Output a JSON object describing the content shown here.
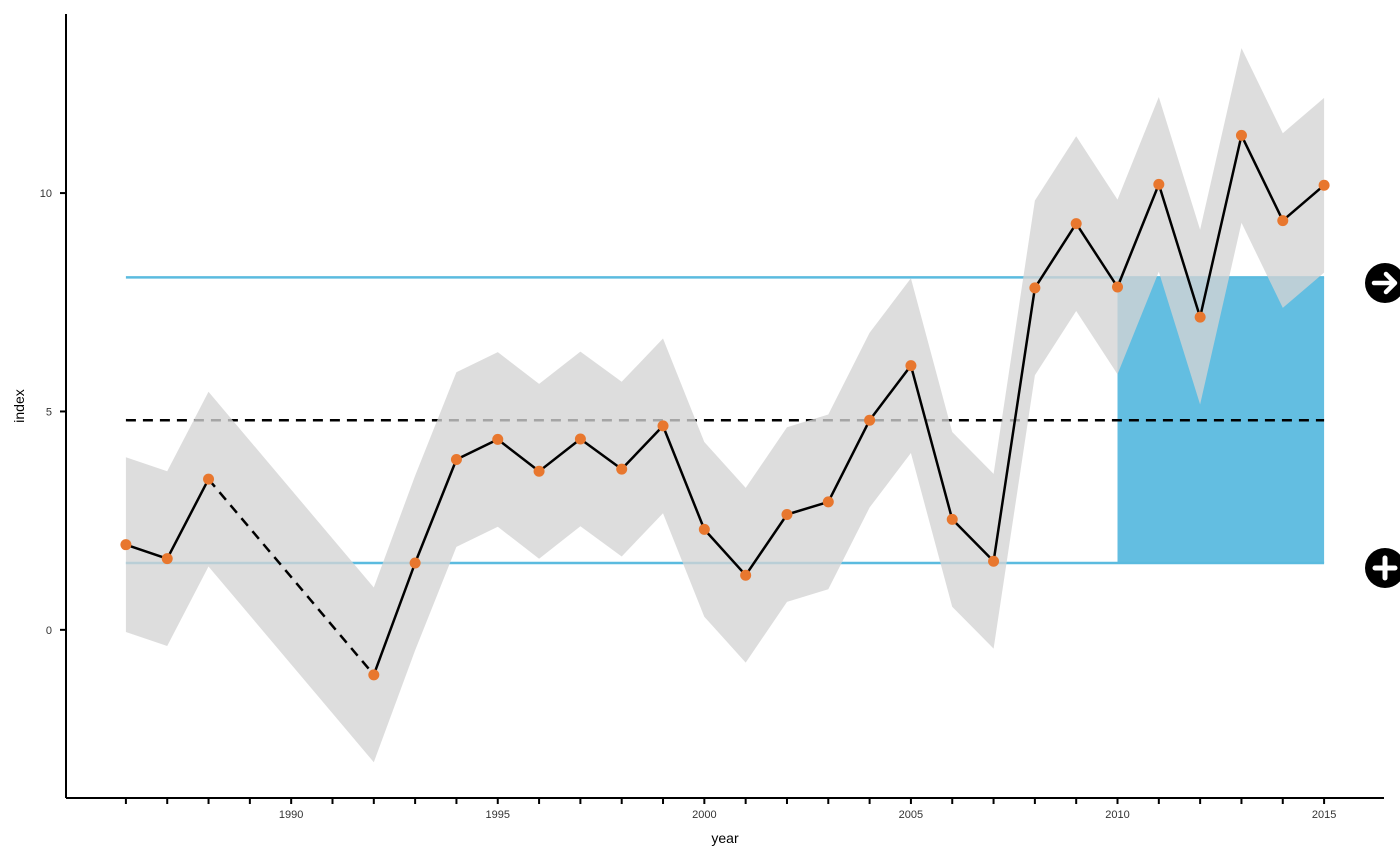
{
  "chart_data": {
    "type": "line",
    "title": "",
    "xlabel": "year",
    "ylabel": "index",
    "xlim": [
      1984.55,
      2016.45
    ],
    "ylim": [
      -3.85,
      14.1
    ],
    "x_ticks": [
      1986,
      1987,
      1988,
      1989,
      1990,
      1991,
      1992,
      1993,
      1994,
      1995,
      1996,
      1997,
      1998,
      1999,
      2000,
      2001,
      2002,
      2003,
      2004,
      2005,
      2006,
      2007,
      2008,
      2009,
      2010,
      2011,
      2012,
      2013,
      2014,
      2015
    ],
    "x_tick_labels": [
      {
        "value": 1990,
        "label": "1990"
      },
      {
        "value": 1995,
        "label": "1995"
      },
      {
        "value": 2000,
        "label": "2000"
      },
      {
        "value": 2005,
        "label": "2005"
      },
      {
        "value": 2010,
        "label": "2010"
      },
      {
        "value": 2015,
        "label": "2015"
      }
    ],
    "y_tick_labels": [
      {
        "value": 0,
        "label": "0"
      },
      {
        "value": 5,
        "label": "5"
      },
      {
        "value": 10,
        "label": "10"
      }
    ],
    "grid": false,
    "series": [
      {
        "x": [
          1986,
          1987,
          1988,
          1992,
          1993,
          1994,
          1995,
          1996,
          1997,
          1998,
          1999,
          2000,
          2001,
          2002,
          2003,
          2004,
          2005,
          2006,
          2007,
          2008,
          2009,
          2010,
          2011,
          2012,
          2013,
          2014,
          2015
        ],
        "y": [
          1.95,
          1.63,
          3.45,
          -1.03,
          1.53,
          3.9,
          4.36,
          3.63,
          4.37,
          3.68,
          4.67,
          2.3,
          1.25,
          2.64,
          2.93,
          4.8,
          6.05,
          2.53,
          1.57,
          7.83,
          9.3,
          7.85,
          10.2,
          7.16,
          11.32,
          9.37,
          10.18
        ],
        "upper": [
          3.95,
          3.63,
          5.45,
          0.97,
          3.53,
          5.9,
          6.36,
          5.63,
          6.37,
          5.68,
          6.67,
          4.3,
          3.25,
          4.64,
          4.93,
          6.8,
          8.05,
          4.53,
          3.57,
          9.83,
          11.3,
          9.85,
          12.2,
          9.16,
          13.32,
          11.37,
          12.18
        ],
        "lower": [
          -0.05,
          -0.37,
          1.45,
          -3.03,
          -0.47,
          1.9,
          2.36,
          1.63,
          2.37,
          1.68,
          2.67,
          0.3,
          -0.75,
          0.64,
          0.93,
          2.8,
          4.05,
          0.53,
          -0.43,
          5.83,
          7.3,
          5.85,
          8.2,
          5.16,
          9.32,
          7.37,
          8.18
        ],
        "gap_after_x": 1988,
        "line_color": "#000000",
        "point_color": "#e8772e",
        "ribbon_color": "#d4d4d4"
      }
    ],
    "reference_lines": {
      "mean": 4.8,
      "upper": 8.07,
      "lower": 1.53,
      "mean_color": "#000000",
      "bound_color": "#5bbbdf"
    },
    "highlight": {
      "x_start": 2010,
      "x_end": 2015,
      "y_from": 1.53,
      "y_to": 8.07,
      "color": "#5bbbdf"
    }
  },
  "icons": {
    "upper": "arrow-right-icon",
    "lower": "plus-icon"
  }
}
